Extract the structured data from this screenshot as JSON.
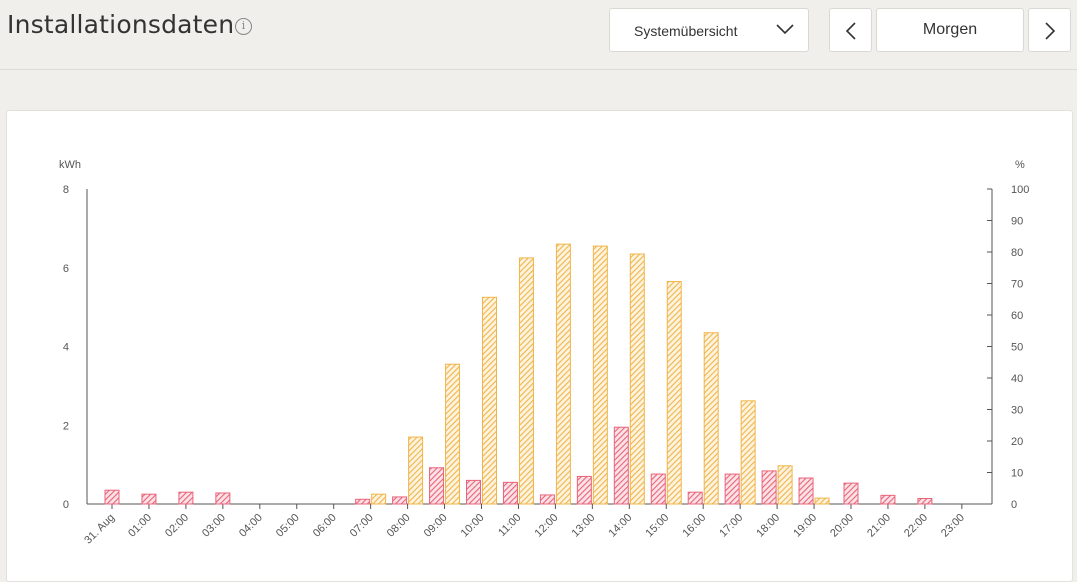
{
  "header": {
    "title": "Installationsdaten",
    "info_glyph": "i",
    "view_select": "Systemübersicht",
    "date_label": "Morgen"
  },
  "colors": {
    "production": "#f0b54a",
    "consumption": "#e8647a",
    "axis": "#555555"
  },
  "chart_data": {
    "type": "bar",
    "title": "",
    "ylabel_left": "kWh",
    "ylabel_right": "%",
    "ylim": [
      0,
      8
    ],
    "ylim_right": [
      0,
      100
    ],
    "yticks_left": [
      "8",
      "6",
      "4",
      "2",
      "0"
    ],
    "yticks_right": [
      "100",
      "90",
      "80",
      "70",
      "60",
      "50",
      "40",
      "30",
      "20",
      "10",
      "0"
    ],
    "categories": [
      "31. Aug",
      "01:00",
      "02:00",
      "03:00",
      "04:00",
      "05:00",
      "06:00",
      "07:00",
      "08:00",
      "09:00",
      "10:00",
      "11:00",
      "12:00",
      "13:00",
      "14:00",
      "15:00",
      "16:00",
      "17:00",
      "18:00",
      "19:00",
      "20:00",
      "21:00",
      "22:00",
      "23:00"
    ],
    "series": [
      {
        "color_key": "production",
        "values": [
          0,
          0,
          0,
          0,
          0,
          0,
          0,
          0.25,
          1.7,
          3.55,
          5.25,
          6.25,
          6.6,
          6.55,
          6.35,
          5.65,
          4.35,
          2.62,
          0.97,
          0.15,
          0,
          0,
          0,
          0
        ]
      },
      {
        "color_key": "consumption",
        "values": [
          0.35,
          0.25,
          0.3,
          0.28,
          0,
          0,
          0,
          0.12,
          0.18,
          0.92,
          0.6,
          0.55,
          0.23,
          0.7,
          1.95,
          0.76,
          0.3,
          0.76,
          0.84,
          0.66,
          0.53,
          0.22,
          0.14,
          0
        ]
      }
    ]
  }
}
